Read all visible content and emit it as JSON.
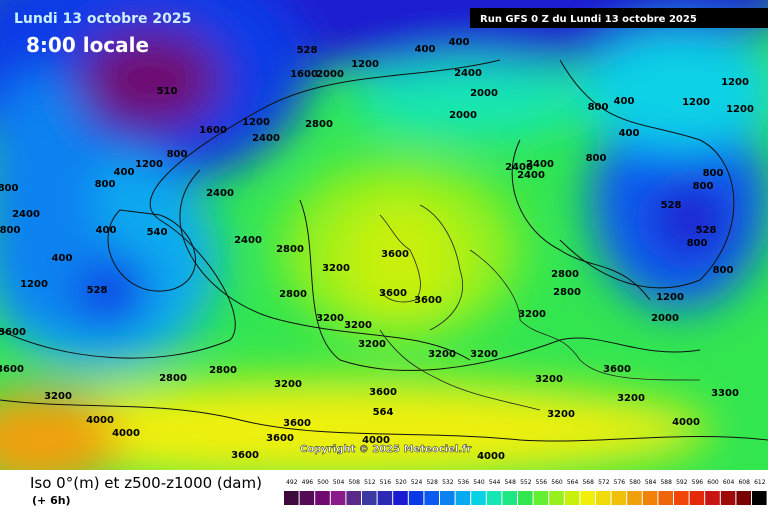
{
  "header": {
    "date": "Lundi 13 octobre 2025",
    "time": "8:00 locale",
    "run": "Run GFS 0 Z du Lundi 13 octobre 2025"
  },
  "map": {
    "copyright": "Copyright © 2025 Meteociel.fr",
    "contour_labels": [
      "528",
      "510",
      "528",
      "540",
      "528",
      "528",
      "564",
      "400",
      "400",
      "1200",
      "1600",
      "2000",
      "2400",
      "2000",
      "2000",
      "1200",
      "2800",
      "2400",
      "1600",
      "800",
      "1200",
      "2400",
      "2400",
      "2800",
      "3200",
      "3600",
      "3600",
      "3600",
      "2800",
      "3200",
      "3200",
      "3200",
      "3200",
      "3200",
      "3600",
      "3200",
      "2800",
      "2800",
      "400",
      "400",
      "800",
      "2400",
      "1200",
      "3600",
      "3600",
      "3200",
      "4000",
      "4000",
      "3600",
      "3600",
      "3600",
      "4000",
      "4000",
      "3200",
      "3200",
      "3600",
      "3200",
      "3300",
      "4000",
      "3200",
      "2800",
      "2800",
      "1200",
      "2000",
      "800",
      "800",
      "800",
      "800",
      "800",
      "2400",
      "2400",
      "2400",
      "1200",
      "1200",
      "1200",
      "800",
      "400",
      "400",
      "800",
      "800",
      "400"
    ]
  },
  "footer": {
    "title": "Iso 0°(m) et z500-z1000 (dam)",
    "lead": "(+ 6h)"
  },
  "legend": {
    "items": [
      {
        "label": 492,
        "color": "#3c0a3c"
      },
      {
        "label": 496,
        "color": "#550a55"
      },
      {
        "label": 500,
        "color": "#700a70"
      },
      {
        "label": 504,
        "color": "#8a1a8a"
      },
      {
        "label": 508,
        "color": "#5a2a8a"
      },
      {
        "label": 512,
        "color": "#3a3aa0"
      },
      {
        "label": 516,
        "color": "#2a2ab4"
      },
      {
        "label": 520,
        "color": "#1a1ad0"
      },
      {
        "label": 524,
        "color": "#0a3ae6"
      },
      {
        "label": 528,
        "color": "#0a5af0"
      },
      {
        "label": 532,
        "color": "#0a82f0"
      },
      {
        "label": 536,
        "color": "#0aaaf0"
      },
      {
        "label": 540,
        "color": "#0ad2e6"
      },
      {
        "label": 544,
        "color": "#14e6b4"
      },
      {
        "label": 548,
        "color": "#1ee682"
      },
      {
        "label": 552,
        "color": "#32e650"
      },
      {
        "label": 556,
        "color": "#64f032"
      },
      {
        "label": 560,
        "color": "#96f01e"
      },
      {
        "label": 564,
        "color": "#c8f00a"
      },
      {
        "label": 568,
        "color": "#f0f00a"
      },
      {
        "label": 572,
        "color": "#f0dc0a"
      },
      {
        "label": 576,
        "color": "#f0c00a"
      },
      {
        "label": 580,
        "color": "#f0a00a"
      },
      {
        "label": 584,
        "color": "#f0820a"
      },
      {
        "label": 588,
        "color": "#f0640a"
      },
      {
        "label": 592,
        "color": "#f0460a"
      },
      {
        "label": 596,
        "color": "#e6280a"
      },
      {
        "label": 600,
        "color": "#c81414"
      },
      {
        "label": 604,
        "color": "#a00a0a"
      },
      {
        "label": 608,
        "color": "#780000"
      },
      {
        "label": 612,
        "color": "#000000"
      }
    ]
  }
}
